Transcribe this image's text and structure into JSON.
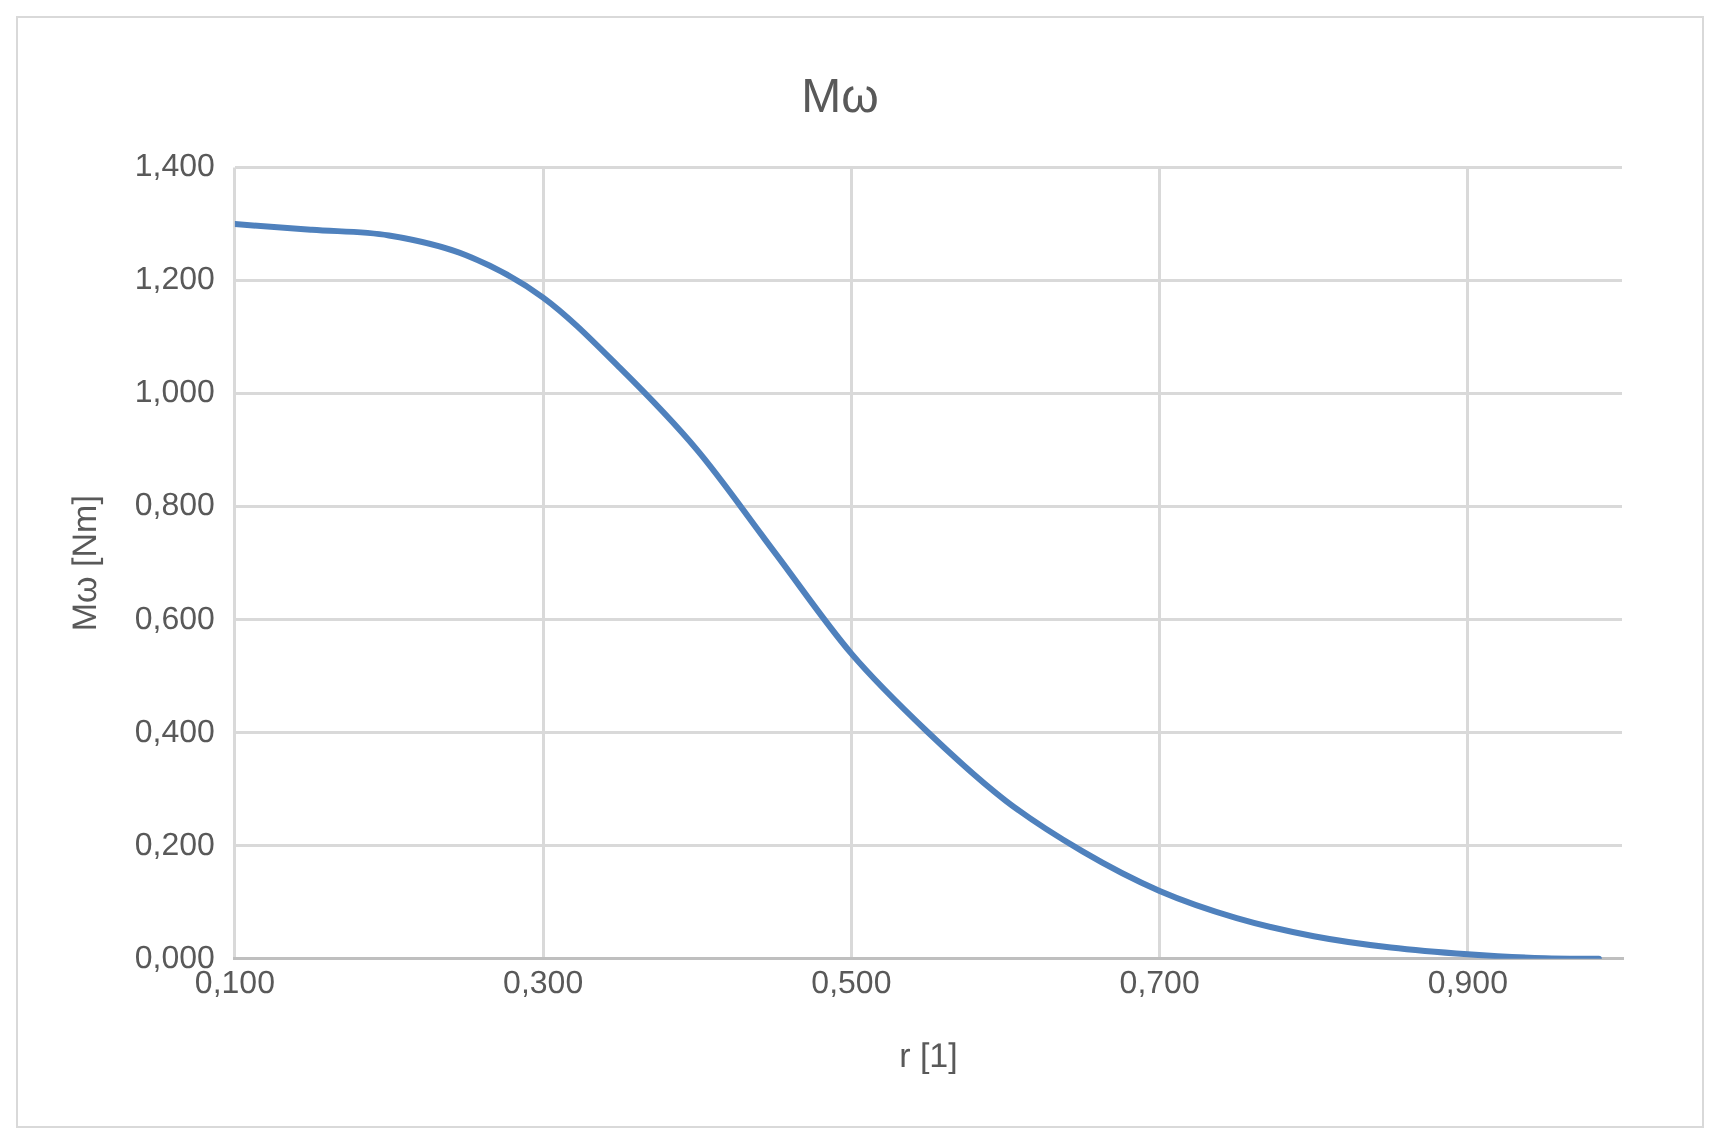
{
  "chart_data": {
    "type": "line",
    "title": "Mω",
    "xlabel": "r [1]",
    "ylabel": "Mω [Nm]",
    "x": [
      0.1,
      0.15,
      0.2,
      0.25,
      0.3,
      0.35,
      0.4,
      0.45,
      0.5,
      0.55,
      0.6,
      0.65,
      0.7,
      0.75,
      0.8,
      0.85,
      0.9,
      0.95,
      0.985
    ],
    "series": [
      {
        "color": "#4f81bd",
        "values": [
          1.3,
          1.29,
          1.28,
          1.245,
          1.17,
          1.045,
          0.9,
          0.72,
          0.54,
          0.4,
          0.28,
          0.19,
          0.12,
          0.072,
          0.04,
          0.02,
          0.008,
          0.001,
          0
        ]
      }
    ],
    "xlim": [
      0.1,
      1.0
    ],
    "xticks": [
      {
        "value": 0.1,
        "label": "0,100"
      },
      {
        "value": 0.3,
        "label": "0,300"
      },
      {
        "value": 0.5,
        "label": "0,500"
      },
      {
        "value": 0.7,
        "label": "0,700"
      },
      {
        "value": 0.9,
        "label": "0,900"
      }
    ],
    "ylim": [
      0,
      1.4
    ],
    "yticks": [
      {
        "value": 0,
        "label": "0,000"
      },
      {
        "value": 0.2,
        "label": "0,200"
      },
      {
        "value": 0.4,
        "label": "0,400"
      },
      {
        "value": 0.6,
        "label": "0,600"
      },
      {
        "value": 0.8,
        "label": "0,800"
      },
      {
        "value": 1.0,
        "label": "1,000"
      },
      {
        "value": 1.2,
        "label": "1,200"
      },
      {
        "value": 1.4,
        "label": "1,400"
      }
    ],
    "grid": true,
    "legend": false,
    "marker": "none",
    "line_style": "solid"
  }
}
